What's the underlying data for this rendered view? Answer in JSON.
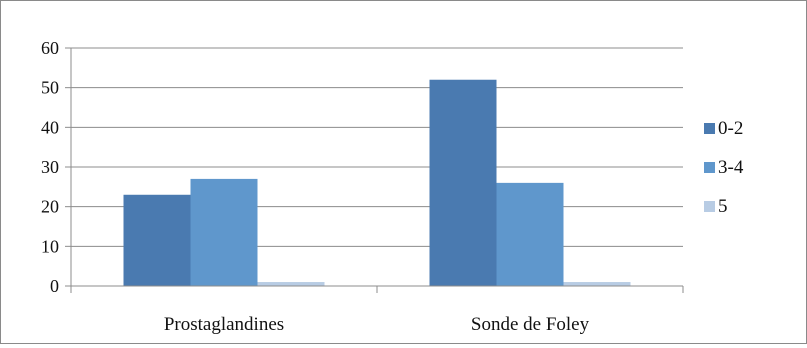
{
  "chart_data": {
    "type": "bar",
    "title": "",
    "xlabel": "",
    "ylabel": "",
    "categories": [
      "Prostaglandines",
      "Sonde de Foley"
    ],
    "series": [
      {
        "name": "0-2",
        "color": "#4a7ab0",
        "values": [
          23,
          52
        ]
      },
      {
        "name": "3-4",
        "color": "#5f97cc",
        "values": [
          27,
          26
        ]
      },
      {
        "name": "5",
        "color": "#b8cce4",
        "values": [
          1,
          1
        ]
      }
    ],
    "ylim": [
      0,
      60
    ],
    "yticks": [
      0,
      10,
      20,
      30,
      40,
      50,
      60
    ],
    "grid": true,
    "legend_position": "right"
  }
}
